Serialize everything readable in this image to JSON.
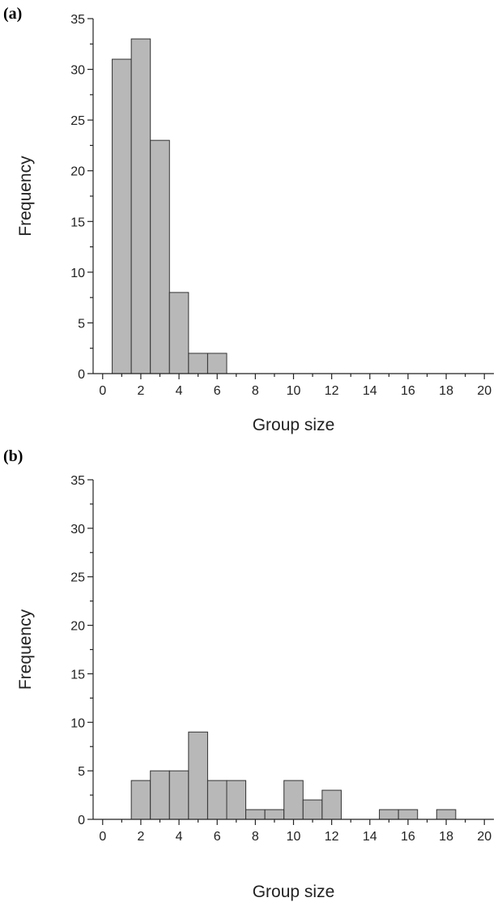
{
  "chart_data": [
    {
      "panel": "(a)",
      "type": "bar",
      "xlabel": "Group size",
      "ylabel": "Frequency",
      "xlim": [
        -0.5,
        20.5
      ],
      "ylim": [
        0,
        35
      ],
      "xticks": [
        0,
        2,
        4,
        6,
        8,
        10,
        12,
        14,
        16,
        18,
        20
      ],
      "yticks": [
        0,
        5,
        10,
        15,
        20,
        25,
        30,
        35
      ],
      "x": [
        1,
        2,
        3,
        4,
        5,
        6
      ],
      "values": [
        31,
        33,
        23,
        8,
        2,
        2
      ],
      "grid": false
    },
    {
      "panel": "(b)",
      "type": "bar",
      "xlabel": "Group size",
      "ylabel": "Frequency",
      "xlim": [
        -0.5,
        20.5
      ],
      "ylim": [
        0,
        35
      ],
      "xticks": [
        0,
        2,
        4,
        6,
        8,
        10,
        12,
        14,
        16,
        18,
        20
      ],
      "yticks": [
        0,
        5,
        10,
        15,
        20,
        25,
        30,
        35
      ],
      "x": [
        2,
        3,
        4,
        5,
        6,
        7,
        8,
        9,
        10,
        11,
        12,
        15,
        16,
        18
      ],
      "values": [
        4,
        5,
        5,
        9,
        4,
        4,
        1,
        1,
        4,
        2,
        3,
        1,
        1,
        1
      ],
      "grid": false
    }
  ]
}
